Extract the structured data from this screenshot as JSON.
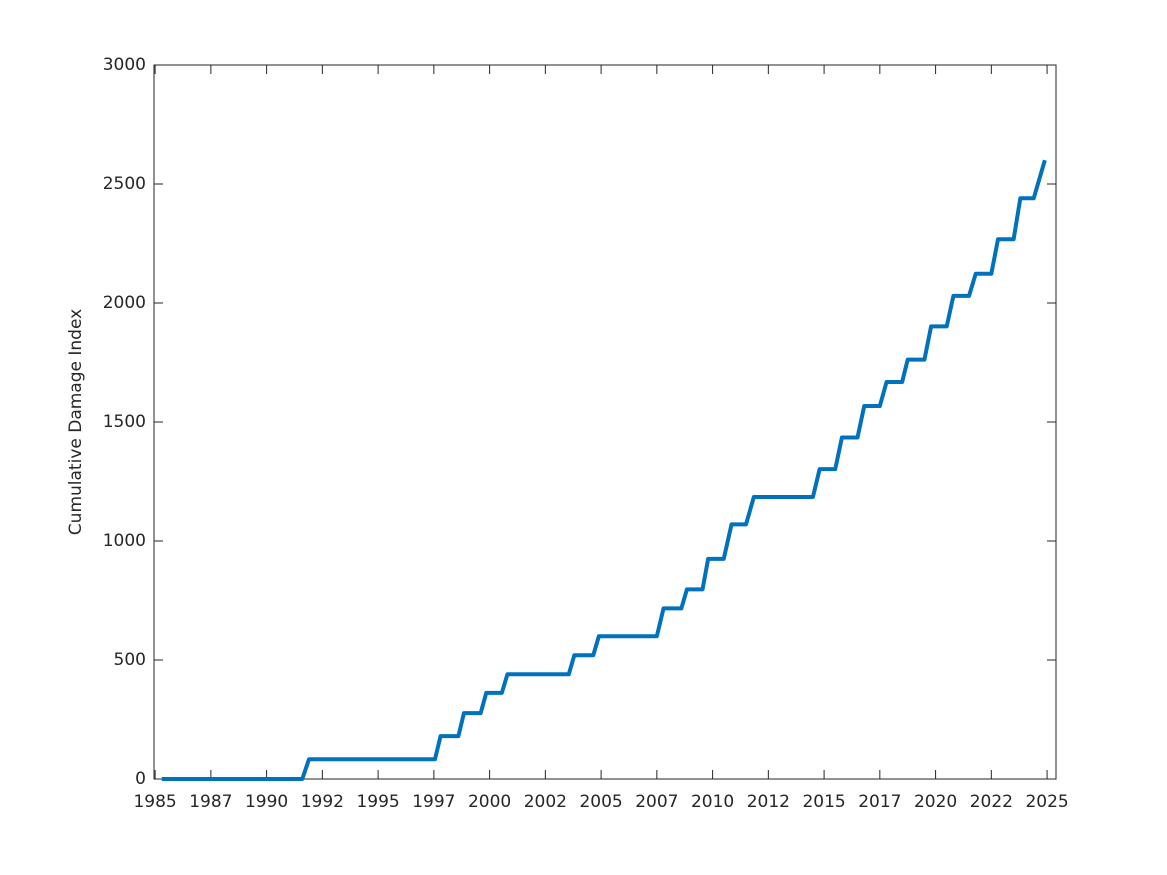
{
  "chart_data": {
    "type": "line",
    "ylabel": "Cumulative Damage Index",
    "x": [
      1985.3,
      1991.6,
      1991.9,
      1997.55,
      1997.8,
      1998.6,
      1998.85,
      1999.6,
      1999.85,
      2000.55,
      2000.8,
      2003.55,
      2003.8,
      2004.65,
      2004.9,
      2007.5,
      2007.8,
      2008.6,
      2008.85,
      2009.55,
      2009.8,
      2010.5,
      2010.85,
      2011.5,
      2011.85,
      2014.5,
      2014.8,
      2015.5,
      2015.8,
      2016.5,
      2016.8,
      2017.5,
      2017.8,
      2018.5,
      2018.75,
      2019.5,
      2019.8,
      2020.5,
      2020.8,
      2021.5,
      2021.8,
      2022.5,
      2022.8,
      2023.5,
      2023.8,
      2024.4,
      2024.9
    ],
    "series": [
      {
        "name": "Cumulative Damage Index",
        "color": "#0072bd",
        "values": [
          0,
          0,
          83,
          83,
          180,
          180,
          277,
          277,
          362,
          362,
          440,
          440,
          520,
          520,
          600,
          600,
          717,
          717,
          797,
          797,
          925,
          925,
          1070,
          1070,
          1185,
          1185,
          1302,
          1302,
          1435,
          1435,
          1567,
          1567,
          1668,
          1668,
          1762,
          1762,
          1902,
          1902,
          2030,
          2030,
          2123,
          2123,
          2268,
          2268,
          2440,
          2440,
          2600
        ]
      }
    ],
    "xlim": [
      1984.95,
      2025.4
    ],
    "xticks": [
      1985,
      {
        "value": 1987.5,
        "label": "1987"
      },
      1990,
      {
        "value": 1992.5,
        "label": "1992"
      },
      1995,
      {
        "value": 1997.5,
        "label": "1997"
      },
      2000,
      {
        "value": 2002.5,
        "label": "2002"
      },
      2005,
      {
        "value": 2007.5,
        "label": "2007"
      },
      2010,
      {
        "value": 2012.5,
        "label": "2012"
      },
      2015,
      {
        "value": 2017.5,
        "label": "2017"
      },
      2020,
      {
        "value": 2022.5,
        "label": "2022"
      },
      2025
    ],
    "ylim": [
      0,
      3000
    ],
    "yticks": [
      0,
      500,
      1000,
      1500,
      2000,
      2500,
      3000
    ],
    "grid": false
  }
}
